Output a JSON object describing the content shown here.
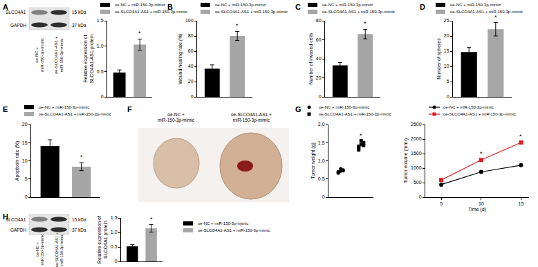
{
  "panel_labels": [
    "A",
    "B",
    "C",
    "D",
    "E",
    "F",
    "G",
    "H"
  ],
  "blots": [
    {
      "rows": [
        {
          "label": "SLCO4A1",
          "size": "15 kDa"
        },
        {
          "label": "GAPDH",
          "size": "37 kDa"
        }
      ],
      "lanes": [
        "oe-NC +\nmiR-150-3p-mimic",
        "oe-SLCO4A1-AS1 +\nmiR-150-3p-mimic"
      ]
    },
    {
      "rows": [
        {
          "label": "SLCO4A1",
          "size": "15 kDa"
        },
        {
          "label": "GAPDH",
          "size": "37 kDa"
        }
      ],
      "lanes": [
        "oe-NC +\nmiR-150-3p-mimic",
        "oe-SLCO4A1-AS1 +\nmiR-150-3p-mimic"
      ]
    }
  ],
  "photo": {
    "labels": [
      "oe-NC +\nmiR-150-3p-mimic",
      "oe-SLCO4A1-AS1 +\nmiR-150-3p-mimic"
    ]
  },
  "chart_data": [
    {
      "type": "bar",
      "y_label": "Relative expression of\nSLCO4A1-AS1 protein",
      "categories": [
        null,
        null
      ],
      "series": [
        {
          "name": "oe-NC + miR-150-3p-mimic",
          "color": "#000000",
          "values": [
            0.48,
            null
          ],
          "errors": [
            0.05,
            null
          ]
        },
        {
          "name": "oe-SLCO4A1-AS1 + miR-150-3p-mimic",
          "color": "#a6a6a6",
          "values": [
            null,
            1.03
          ],
          "errors": [
            null,
            0.11
          ]
        }
      ],
      "ylim": [
        0,
        1.5
      ],
      "yticks": [
        0,
        0.5,
        {
          "value": 1,
          "label": "1.0"
        },
        1.5
      ],
      "annotations": [
        {
          "index": 1,
          "text": "*"
        }
      ],
      "grid": false,
      "tick_labels": "y"
    },
    {
      "type": "bar",
      "y_label": "Wound healing rate (%)",
      "categories": [
        null,
        null
      ],
      "series": [
        {
          "name": "oe-NC + miR-150-3p-mimic",
          "color": "#000000",
          "values": [
            37,
            null
          ],
          "errors": [
            5,
            null
          ]
        },
        {
          "name": "oe-SLCO4A1-AS1 + miR-150-3p-mimic",
          "color": "#a6a6a6",
          "values": [
            null,
            80
          ],
          "errors": [
            null,
            6
          ]
        }
      ],
      "ylim": [
        0,
        100
      ],
      "yticks": [
        0,
        20,
        40,
        60,
        80,
        100
      ],
      "annotations": [
        {
          "index": 1,
          "text": "*"
        }
      ],
      "grid": false,
      "tick_labels": "y"
    },
    {
      "type": "bar",
      "y_label": "Number of invased cells",
      "categories": [
        null,
        null
      ],
      "series": [
        {
          "name": "oe-NC + miR-150-3p-mimic",
          "color": "#000000",
          "values": [
            33,
            null
          ],
          "errors": [
            3,
            null
          ]
        },
        {
          "name": "oe-SLCO4A1-AS1 + miR-150-3p-mimic",
          "color": "#a6a6a6",
          "values": [
            null,
            66
          ],
          "errors": [
            null,
            5
          ]
        }
      ],
      "ylim": [
        0,
        80
      ],
      "yticks": [
        0,
        20,
        40,
        60,
        80
      ],
      "annotations": [
        {
          "index": 1,
          "text": "*"
        }
      ],
      "grid": false,
      "tick_labels": "y"
    },
    {
      "type": "bar",
      "y_label": "Number of spheres",
      "categories": [
        null,
        null
      ],
      "series": [
        {
          "name": "oe-NC + miR-150-3p-mimic",
          "color": "#000000",
          "values": [
            14.7,
            null
          ],
          "errors": [
            1.5,
            null
          ]
        },
        {
          "name": "oe-SLCO4A1-AS1 + miR-150-3p-mimic",
          "color": "#a6a6a6",
          "values": [
            null,
            22.2
          ],
          "errors": [
            null,
            2.2
          ]
        }
      ],
      "ylim": [
        0,
        25
      ],
      "yticks": [
        0,
        5,
        10,
        15,
        20,
        25
      ],
      "annotations": [
        {
          "index": 1,
          "text": "*"
        }
      ],
      "grid": false,
      "tick_labels": "y"
    },
    {
      "type": "bar",
      "y_label": "Apoptosis rate (%)",
      "categories": [
        null,
        null
      ],
      "series": [
        {
          "name": "oe-NC + miR-150-3p-mimic",
          "color": "#000000",
          "values": [
            14.1,
            null
          ],
          "errors": [
            1.7,
            null
          ]
        },
        {
          "name": "oe-SLCO4A1-AS1 + miR-150-3p-mimic",
          "color": "#a6a6a6",
          "values": [
            null,
            8.4
          ],
          "errors": [
            null,
            1.1
          ]
        }
      ],
      "ylim": [
        0,
        20
      ],
      "yticks": [
        0,
        5,
        10,
        15,
        20
      ],
      "annotations": [
        {
          "index": 1,
          "text": "*"
        }
      ],
      "grid": false,
      "tick_labels": "y"
    },
    {
      "type": "scatter",
      "y_label": "Tumor weight (g)",
      "categories": [
        null,
        null
      ],
      "series": [
        {
          "name": "oe-NC + miR-150-3p-mimic",
          "color": "#000000",
          "marker": "circle",
          "values": [
            [
              0.68,
              0.72,
              0.75,
              0.7,
              0.78,
              0.73,
              0.66
            ],
            null
          ]
        },
        {
          "name": "oe-SLCO4A1-AS1 + miR-150-3p-mimic",
          "color": "#000000",
          "marker": "square",
          "values": [
            null,
            [
              1.35,
              1.45,
              1.5,
              1.4,
              1.55,
              1.42,
              1.3
            ]
          ]
        }
      ],
      "ylim": [
        0,
        2
      ],
      "yticks": [
        0,
        0.5,
        {
          "value": 1,
          "label": "1.0"
        },
        1.5,
        {
          "value": 2,
          "label": "2.0"
        }
      ],
      "annotations": [
        {
          "index": 1,
          "text": "*"
        }
      ],
      "grid": false,
      "tick_labels": "y"
    },
    {
      "type": "line",
      "x_label": "Time (d)",
      "y_label": "Tumor volume (mm³)",
      "x": [
        5,
        10,
        15
      ],
      "series": [
        {
          "name": "oe-NC + miR-150-3p-mimic",
          "color": "#000000",
          "marker": "circle",
          "values": [
            430,
            870,
            1100
          ]
        },
        {
          "name": "oe-SLCO4A1-AS1 + miR-150-3p-mimic",
          "color": "#e41a1c",
          "marker": "square",
          "values": [
            590,
            1280,
            1880
          ]
        }
      ],
      "xlim": [
        3,
        16
      ],
      "xticks": [
        5,
        10,
        15
      ],
      "ylim": [
        0,
        2500
      ],
      "yticks": [
        0,
        500,
        1000,
        1500,
        2000,
        2500
      ],
      "annotations": [
        {
          "x": 10,
          "text": "*"
        },
        {
          "x": 15,
          "text": "*"
        }
      ],
      "grid": false
    },
    {
      "type": "bar",
      "y_label": "Relative expression of\nSLCO4A1 protein",
      "categories": [
        null,
        null
      ],
      "series": [
        {
          "name": "oe-NC + miR-150-3p-mimic",
          "color": "#000000",
          "values": [
            0.52,
            null
          ],
          "errors": [
            0.06,
            null
          ]
        },
        {
          "name": "oe-SLCO4A1-AS1 + miR-150-3p-mimic",
          "color": "#a6a6a6",
          "values": [
            null,
            1.14
          ],
          "errors": [
            null,
            0.13
          ]
        }
      ],
      "ylim": [
        0,
        1.5
      ],
      "yticks": [
        0,
        0.5,
        {
          "value": 1,
          "label": "1.0"
        },
        1.5
      ],
      "annotations": [
        {
          "index": 1,
          "text": "*"
        }
      ],
      "grid": false,
      "tick_labels": "y"
    }
  ]
}
